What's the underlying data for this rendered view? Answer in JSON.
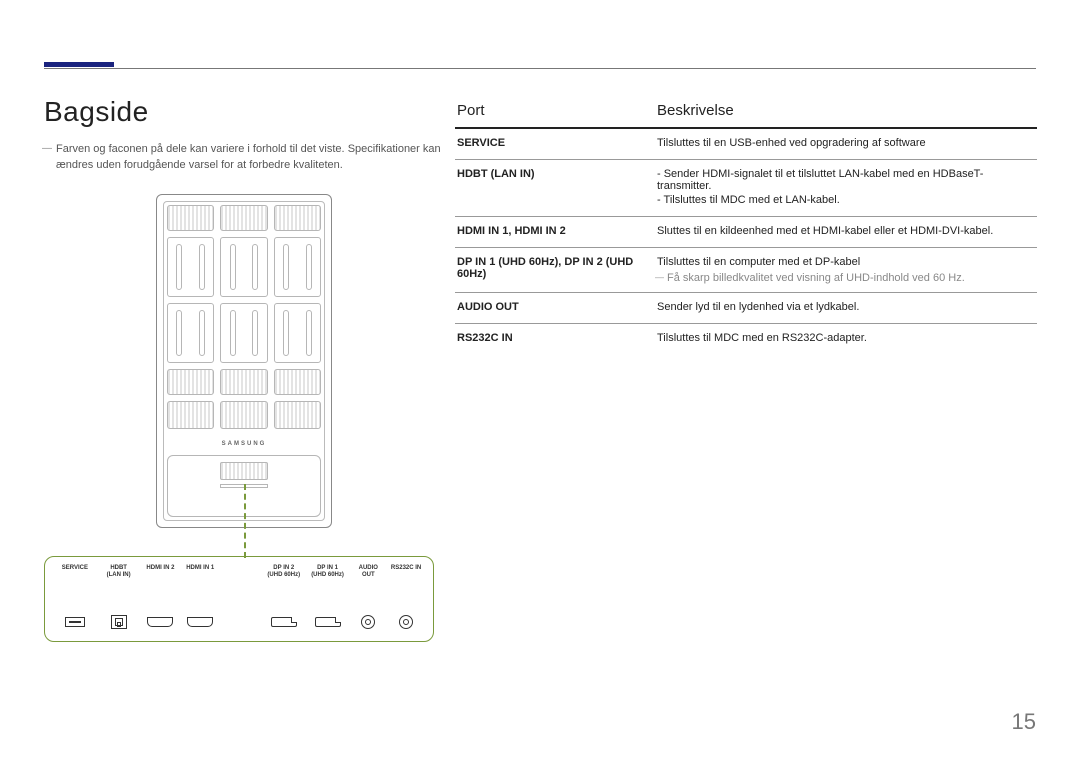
{
  "page": {
    "number": "15"
  },
  "left": {
    "heading": "Bagside",
    "note1": "Farven og faconen på dele kan variere i forhold til det viste.",
    "note2": "Specifikationer kan ændres uden forudgående varsel for at forbedre kvaliteten.",
    "brand": "SAMSUNG"
  },
  "table": {
    "head_port": "Port",
    "head_desc": "Beskrivelse",
    "rows": [
      {
        "port": "SERVICE",
        "lines": [
          "Tilsluttes til en USB-enhed ved opgradering af software"
        ],
        "note": null
      },
      {
        "port": "HDBT (LAN IN)",
        "lines": [
          "- Sender HDMI-signalet til et tilsluttet LAN-kabel med en HDBaseT-transmitter.",
          "- Tilsluttes til MDC med et LAN-kabel."
        ],
        "note": null
      },
      {
        "port": "HDMI IN 1, HDMI IN 2",
        "lines": [
          "Sluttes til en kildeenhed med et HDMI-kabel eller et HDMI-DVI-kabel."
        ],
        "note": null
      },
      {
        "port": "DP  IN 1 (UHD 60Hz), DP IN 2 (UHD 60Hz)",
        "lines": [
          "Tilsluttes til en computer med et DP-kabel"
        ],
        "note": "Få skarp billedkvalitet ved visning af UHD-indhold ved 60 Hz."
      },
      {
        "port": "AUDIO OUT",
        "lines": [
          "Sender lyd til en lydenhed via et lydkabel."
        ],
        "note": null
      },
      {
        "port": "RS232C IN",
        "lines": [
          "Tilsluttes til MDC med en RS232C-adapter."
        ],
        "note": null
      }
    ]
  },
  "strip": {
    "items": [
      {
        "label": "SERVICE",
        "sub": "",
        "shape": "usb",
        "w": "w-service"
      },
      {
        "label": "HDBT",
        "sub": "(LAN IN)",
        "shape": "lan",
        "w": "w-lan"
      },
      {
        "label": "HDMI IN 2",
        "sub": "",
        "shape": "hdmi",
        "w": "w-hdmi"
      },
      {
        "label": "HDMI IN 1",
        "sub": "",
        "shape": "hdmi",
        "w": "w-hdmi"
      },
      {
        "label": "",
        "sub": "",
        "shape": "",
        "w": "w-gap1"
      },
      {
        "label": "DP  IN 2",
        "sub": "(UHD 60Hz)",
        "shape": "dp",
        "w": "w-dp"
      },
      {
        "label": "DP  IN 1",
        "sub": "(UHD 60Hz)",
        "shape": "dp",
        "w": "w-dp"
      },
      {
        "label": "AUDIO",
        "sub": "OUT",
        "shape": "jack",
        "w": "w-audio"
      },
      {
        "label": "RS232C IN",
        "sub": "",
        "shape": "jack",
        "w": "w-rs"
      }
    ]
  }
}
